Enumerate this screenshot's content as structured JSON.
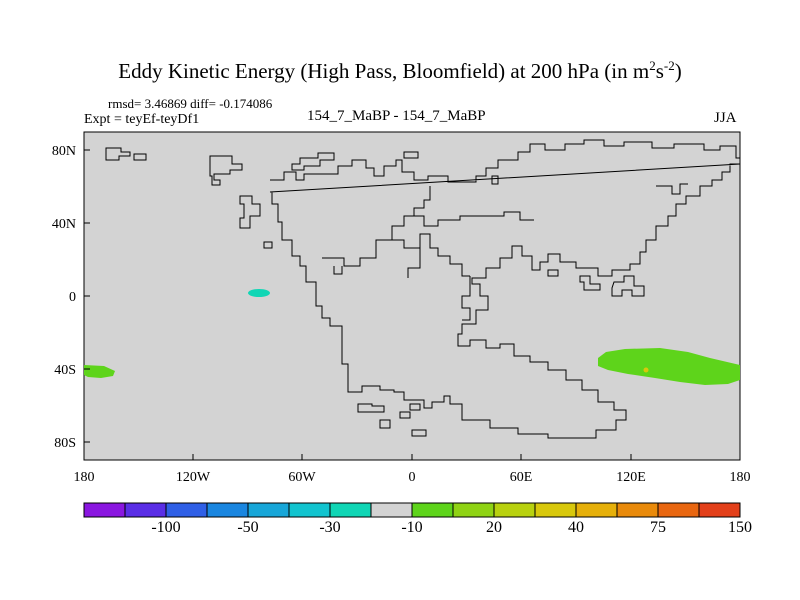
{
  "title": {
    "main": "Eddy Kinetic Energy (High Pass, Bloomfield) at 200 hPa (in m",
    "sup1": "2",
    "mid": "s",
    "sup2": "-2",
    "end": ")"
  },
  "stats": {
    "rmsd_diff": "rmsd= 3.46869  diff= -0.174086",
    "expt": "Expt = teyEf-teyDf1",
    "case": "154_7_MaBP - 154_7_MaBP",
    "season": "JJA"
  },
  "axes": {
    "y_labels": [
      "80N",
      "40N",
      "0",
      "40S",
      "80S"
    ],
    "x_labels": [
      "180",
      "120W",
      "60W",
      "0",
      "60E",
      "120E",
      "180"
    ]
  },
  "colorbar": {
    "labels": [
      "-100",
      "-50",
      "-30",
      "-10",
      "20",
      "40",
      "75",
      "150"
    ],
    "colors": [
      "#8a16e0",
      "#5a2ee6",
      "#2f5fe6",
      "#1a86e0",
      "#17a6d8",
      "#12c4cf",
      "#10d6b5",
      "#d3d3d3",
      "#5ed41b",
      "#8fd314",
      "#b8d10f",
      "#d8c80c",
      "#e6b00a",
      "#e98a0a",
      "#e86610",
      "#e3401a"
    ]
  },
  "map": {
    "background_color": "#d3d3d3",
    "anomalies": [
      {
        "name": "cyan-blob-eq-pacific",
        "color": "#10d6b5"
      },
      {
        "name": "green-blob-south-pacific",
        "color": "#5ed41b"
      },
      {
        "name": "green-band-south-indian",
        "color": "#5ed41b"
      },
      {
        "name": "orange-dot",
        "color": "#d8c80c"
      }
    ]
  }
}
